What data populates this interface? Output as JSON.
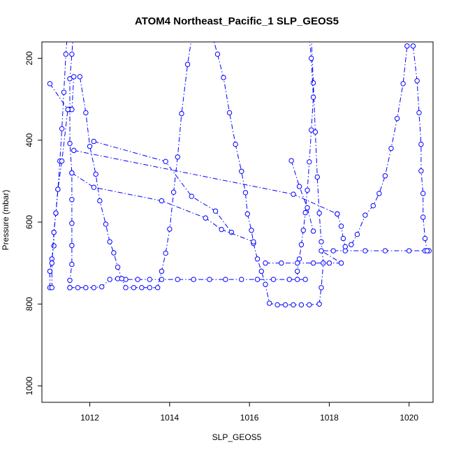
{
  "chart_data": {
    "type": "line",
    "title": "ATOM4 Northeast_Pacific_1 SLP_GEOS5",
    "xlabel": "SLP_GEOS5",
    "ylabel": "Pressure (mbar)",
    "xlim": [
      1010.8,
      1020.6
    ],
    "ylim": [
      1040,
      160
    ],
    "y_reversed": true,
    "x_ticks": [
      1012,
      1014,
      1016,
      1018,
      1020
    ],
    "y_ticks": [
      200,
      400,
      600,
      800,
      1000
    ],
    "grid": false,
    "legend": "none",
    "series_color": "#0000ff",
    "series": [
      {
        "points": [
          [
            1011.0,
            760
          ],
          [
            1011.0,
            720
          ],
          [
            1011.05,
            690
          ],
          [
            1011.1,
            658
          ],
          [
            1011.1,
            625
          ],
          [
            1011.15,
            578
          ],
          [
            1011.2,
            520
          ],
          [
            1011.25,
            451
          ],
          [
            1011.3,
            372
          ],
          [
            1011.35,
            283
          ],
          [
            1011.4,
            190
          ],
          [
            1011.45,
            120
          ]
        ]
      },
      {
        "points": [
          [
            1011.6,
            120
          ],
          [
            1011.55,
            190
          ],
          [
            1011.5,
            250
          ],
          [
            1011.5,
            325
          ],
          [
            1011.5,
            408
          ],
          [
            1011.55,
            480
          ],
          [
            1011.55,
            545
          ],
          [
            1011.55,
            603
          ],
          [
            1011.55,
            657
          ],
          [
            1011.55,
            703
          ],
          [
            1011.5,
            742
          ],
          [
            1011.5,
            760
          ]
        ]
      },
      {
        "points": [
          [
            1011.5,
            760
          ],
          [
            1011.7,
            760
          ],
          [
            1011.9,
            760
          ],
          [
            1012.1,
            760
          ],
          [
            1012.3,
            758
          ],
          [
            1012.5,
            740
          ],
          [
            1012.7,
            738
          ],
          [
            1012.9,
            740
          ],
          [
            1013.2,
            740
          ],
          [
            1013.5,
            740
          ],
          [
            1013.8,
            740
          ],
          [
            1014.2,
            740
          ],
          [
            1014.6,
            740
          ],
          [
            1015.0,
            740
          ],
          [
            1015.4,
            740
          ],
          [
            1015.8,
            740
          ],
          [
            1016.2,
            740
          ],
          [
            1016.6,
            740
          ],
          [
            1017.0,
            740
          ],
          [
            1017.4,
            740
          ]
        ]
      },
      {
        "points": [
          [
            1011.05,
            760
          ],
          [
            1011.05,
            700
          ],
          [
            1011.1,
            625
          ],
          [
            1011.15,
            578
          ],
          [
            1011.2,
            520
          ],
          [
            1011.3,
            451
          ],
          [
            1011.45,
            325
          ],
          [
            1011.55,
            325
          ],
          [
            1011.6,
            245
          ],
          [
            1011.75,
            245
          ],
          [
            1011.9,
            333
          ],
          [
            1012.0,
            415
          ],
          [
            1012.15,
            483
          ],
          [
            1012.25,
            548
          ],
          [
            1012.4,
            605
          ],
          [
            1012.5,
            648
          ],
          [
            1012.6,
            675
          ],
          [
            1012.7,
            710
          ],
          [
            1012.8,
            738
          ],
          [
            1012.9,
            760
          ],
          [
            1013.1,
            760
          ],
          [
            1013.3,
            760
          ],
          [
            1013.5,
            760
          ],
          [
            1013.7,
            760
          ],
          [
            1013.8,
            720
          ],
          [
            1013.9,
            676
          ],
          [
            1014.0,
            617
          ],
          [
            1014.1,
            527
          ],
          [
            1014.2,
            441
          ],
          [
            1014.3,
            335
          ],
          [
            1014.45,
            215
          ],
          [
            1014.6,
            120
          ]
        ]
      },
      {
        "points": [
          [
            1015.0,
            120
          ],
          [
            1015.2,
            190
          ],
          [
            1015.35,
            247
          ],
          [
            1015.5,
            333
          ],
          [
            1015.65,
            410
          ],
          [
            1015.8,
            476
          ],
          [
            1015.9,
            528
          ],
          [
            1015.95,
            580
          ],
          [
            1016.05,
            620
          ],
          [
            1016.1,
            652
          ],
          [
            1016.2,
            690
          ],
          [
            1016.3,
            720
          ],
          [
            1016.4,
            752
          ],
          [
            1016.5,
            798
          ],
          [
            1016.7,
            802
          ],
          [
            1016.9,
            802
          ],
          [
            1017.1,
            802
          ],
          [
            1017.3,
            802
          ],
          [
            1017.5,
            802
          ],
          [
            1017.75,
            800
          ],
          [
            1017.8,
            760
          ],
          [
            1017.85,
            700
          ],
          [
            1017.8,
            648
          ],
          [
            1017.75,
            578
          ],
          [
            1017.7,
            490
          ],
          [
            1017.65,
            380
          ],
          [
            1017.6,
            260
          ],
          [
            1017.55,
            150
          ]
        ]
      },
      {
        "points": [
          [
            1017.5,
            150
          ],
          [
            1017.55,
            200
          ],
          [
            1017.6,
            295
          ],
          [
            1017.55,
            375
          ],
          [
            1017.5,
            453
          ],
          [
            1017.45,
            522
          ],
          [
            1017.4,
            577
          ],
          [
            1017.35,
            620
          ],
          [
            1017.3,
            655
          ],
          [
            1017.25,
            690
          ],
          [
            1017.2,
            720
          ],
          [
            1017.2,
            740
          ]
        ]
      },
      {
        "points": [
          [
            1016.4,
            700
          ],
          [
            1016.8,
            700
          ],
          [
            1017.2,
            700
          ],
          [
            1017.6,
            700
          ],
          [
            1018.0,
            700
          ],
          [
            1018.3,
            700
          ],
          [
            1017.8,
            670
          ],
          [
            1018.1,
            670
          ],
          [
            1018.4,
            670
          ],
          [
            1018.9,
            670
          ],
          [
            1019.4,
            670
          ],
          [
            1020.0,
            670
          ],
          [
            1020.4,
            670
          ],
          [
            1020.5,
            670
          ]
        ]
      },
      {
        "points": [
          [
            1018.2,
            580
          ],
          [
            1018.3,
            610
          ],
          [
            1018.35,
            640
          ],
          [
            1018.4,
            660
          ],
          [
            1018.55,
            655
          ],
          [
            1018.7,
            630
          ],
          [
            1018.9,
            583
          ],
          [
            1019.1,
            560
          ],
          [
            1019.25,
            530
          ],
          [
            1019.4,
            487
          ],
          [
            1019.55,
            420
          ],
          [
            1019.7,
            347
          ],
          [
            1019.85,
            262
          ],
          [
            1019.95,
            170
          ],
          [
            1020.05,
            120
          ]
        ]
      },
      {
        "points": [
          [
            1020.1,
            170
          ],
          [
            1020.2,
            255
          ],
          [
            1020.25,
            333
          ],
          [
            1020.3,
            410
          ],
          [
            1020.3,
            475
          ],
          [
            1020.35,
            530
          ],
          [
            1020.35,
            588
          ],
          [
            1020.4,
            640
          ],
          [
            1020.45,
            670
          ]
        ]
      },
      {
        "points": [
          [
            1011.0,
            262
          ],
          [
            1011.45,
            325
          ]
        ]
      },
      {
        "points": [
          [
            1012.1,
            403
          ],
          [
            1013.9,
            452
          ],
          [
            1014.55,
            537
          ],
          [
            1015.15,
            573
          ],
          [
            1015.55,
            625
          ]
        ]
      },
      {
        "points": [
          [
            1011.6,
            425
          ],
          [
            1017.1,
            532
          ],
          [
            1018.2,
            580
          ]
        ]
      },
      {
        "points": [
          [
            1011.55,
            480
          ],
          [
            1012.1,
            515
          ],
          [
            1013.8,
            548
          ],
          [
            1014.9,
            590
          ],
          [
            1015.3,
            618
          ],
          [
            1016.1,
            648
          ]
        ]
      },
      {
        "points": [
          [
            1017.05,
            450
          ],
          [
            1017.25,
            513
          ],
          [
            1017.45,
            565
          ],
          [
            1017.6,
            622
          ]
        ]
      }
    ]
  }
}
